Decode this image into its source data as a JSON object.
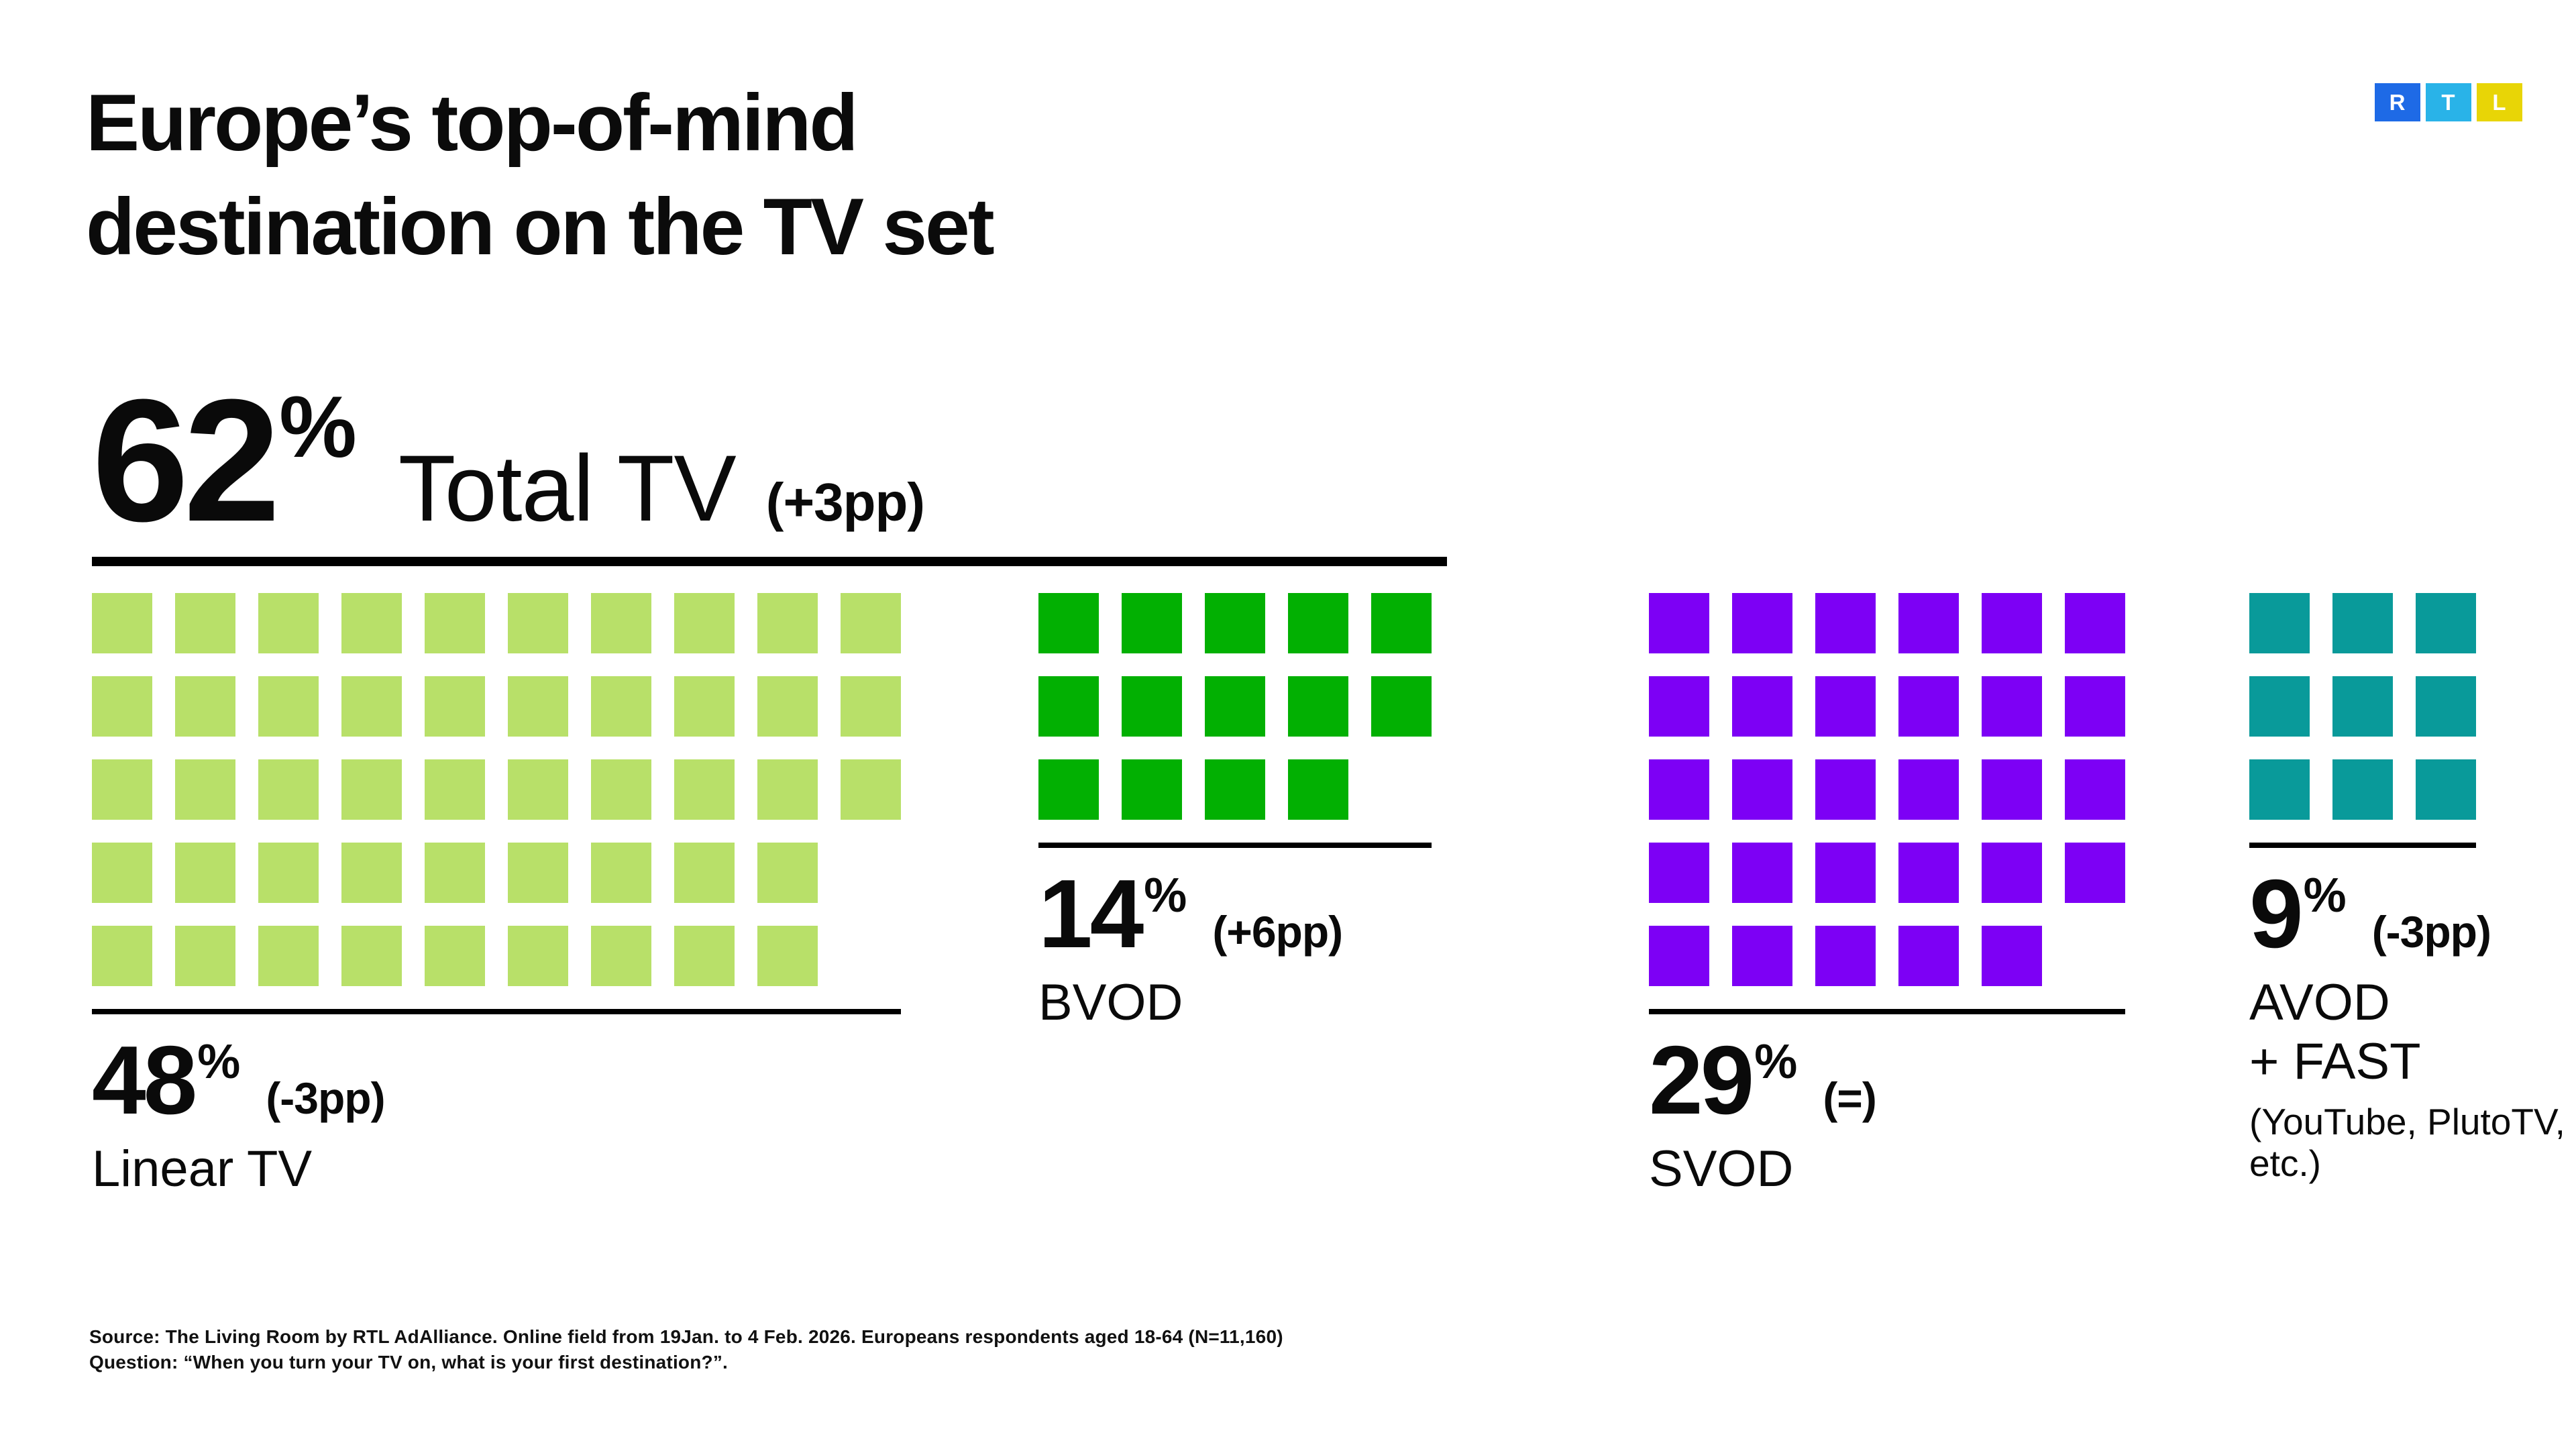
{
  "page": {
    "background": "#ffffff",
    "text_color": "#0a0a0a"
  },
  "title": {
    "line1": "Europe’s top-of-mind",
    "line2": "destination on the TV set"
  },
  "logo": {
    "name": "RTL",
    "blocks": [
      {
        "letter": "R",
        "color": "#1e6ae6"
      },
      {
        "letter": "T",
        "color": "#29b3e8"
      },
      {
        "letter": "L",
        "color": "#e8d506"
      }
    ]
  },
  "total": {
    "value": "62",
    "percent_sign": "%",
    "label": "Total TV",
    "change": "(+3pp)"
  },
  "segments": [
    {
      "id": "linear-tv",
      "value": "48",
      "percent_sign": "%",
      "change": "(-3pp)",
      "label": "Linear TV",
      "color": "#b8e069",
      "rows": [
        10,
        10,
        10,
        9,
        9
      ]
    },
    {
      "id": "bvod",
      "value": "14",
      "percent_sign": "%",
      "change": "(+6pp)",
      "label": "BVOD",
      "color": "#02b002",
      "rows": [
        5,
        5,
        4
      ]
    },
    {
      "id": "svod",
      "value": "29",
      "percent_sign": "%",
      "change": "(=)",
      "label": "SVOD",
      "color": "#7d00f5",
      "rows": [
        6,
        6,
        6,
        6,
        5
      ]
    },
    {
      "id": "avod-fast",
      "value": "9",
      "percent_sign": "%",
      "change": "(-3pp)",
      "label": "AVOD",
      "label2": "+ FAST",
      "sublabel": "(YouTube, PlutoTV, etc.)",
      "color": "#099a9a",
      "rows": [
        3,
        3,
        3
      ]
    }
  ],
  "source": {
    "line1": "Source: The Living Room by RTL AdAlliance. Online field from 19Jan. to 4 Feb. 2026. Europeans respondents aged 18-64 (N=11,160)",
    "line2": "Question: “When you turn your TV on, what is your first destination?”."
  },
  "chart_data": {
    "type": "waffle",
    "title": "Europe’s top-of-mind destination on the TV set",
    "unit": "percent of respondents (first destination when turning on the TV set)",
    "square_value_pp": 1,
    "total": {
      "label": "Total TV",
      "value": 62,
      "change": "+3pp"
    },
    "categories": [
      "Linear TV",
      "BVOD",
      "SVOD",
      "AVOD + FAST (YouTube, PlutoTV, etc.)"
    ],
    "values": [
      48,
      14,
      29,
      9
    ],
    "changes": [
      "-3pp",
      "+6pp",
      "=",
      "-3pp"
    ],
    "colors": [
      "#b8e069",
      "#02b002",
      "#7d00f5",
      "#099a9a"
    ],
    "waffle_rows": {
      "Linear TV": [
        10,
        10,
        10,
        9,
        9
      ],
      "BVOD": [
        5,
        5,
        4
      ],
      "SVOD": [
        6,
        6,
        6,
        6,
        5
      ],
      "AVOD + FAST": [
        3,
        3,
        3
      ]
    },
    "legend_position": "labels below each waffle",
    "grid": false,
    "notes": "Total TV (62%, +3pp) underline spans the Linear TV and BVOD waffles; Total TV = Linear TV 48% + BVOD 14%",
    "source": "Source: The Living Room by RTL AdAlliance. Online field from 19Jan. to 4 Feb. 2026. Europeans respondents aged 18-64 (N=11,160) Question: “When you turn your TV on, what is your first destination?”."
  }
}
